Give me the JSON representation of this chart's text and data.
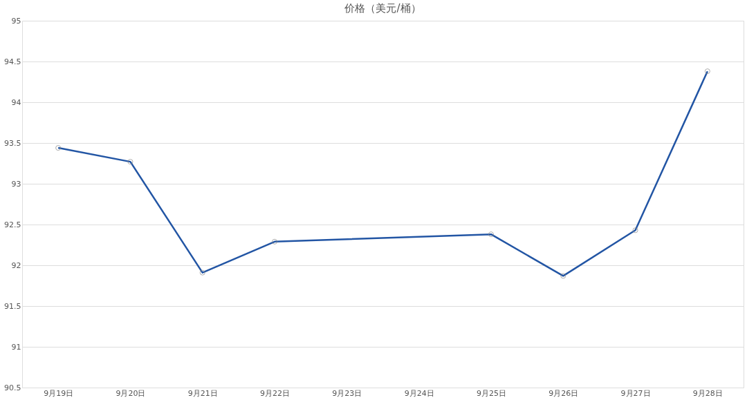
{
  "chart_data": {
    "type": "line",
    "title": "价格（美元/桶）",
    "categories": [
      "9月19日",
      "9月20日",
      "9月21日",
      "9月22日",
      "9月23日",
      "9月24日",
      "9月25日",
      "9月26日",
      "9月27日",
      "9月28日"
    ],
    "series": [
      {
        "color": "#2255a4",
        "values": [
          93.44,
          93.27,
          91.91,
          92.29,
          null,
          null,
          92.38,
          91.87,
          92.43,
          94.38
        ]
      }
    ],
    "ylim": [
      90.5,
      95
    ],
    "yticks": [
      90.5,
      91,
      91.5,
      92,
      92.5,
      93,
      93.5,
      94,
      94.5,
      95
    ],
    "grid": "y",
    "marker": "circle",
    "line_style": "solid"
  }
}
